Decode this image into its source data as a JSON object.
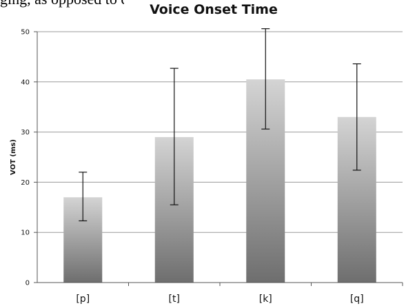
{
  "caption_fragment": "ging, as opposed to converging.",
  "chart_data": {
    "type": "bar",
    "title": "Voice Onset Time",
    "xlabel": "",
    "ylabel": "VOT (ms)",
    "categories": [
      "[p]",
      "[t]",
      "[k]",
      "[q]"
    ],
    "values": [
      17,
      29,
      40.5,
      33
    ],
    "error_low": [
      12.3,
      15.5,
      30.6,
      22.4
    ],
    "error_high": [
      22,
      42.7,
      50.6,
      43.6
    ],
    "ylim": [
      0,
      50
    ],
    "yticks": [
      0,
      10,
      20,
      30,
      40,
      50
    ],
    "grid": true,
    "bar_colors": {
      "top": "#d4d4d4",
      "bottom": "#6e6e6e"
    }
  }
}
